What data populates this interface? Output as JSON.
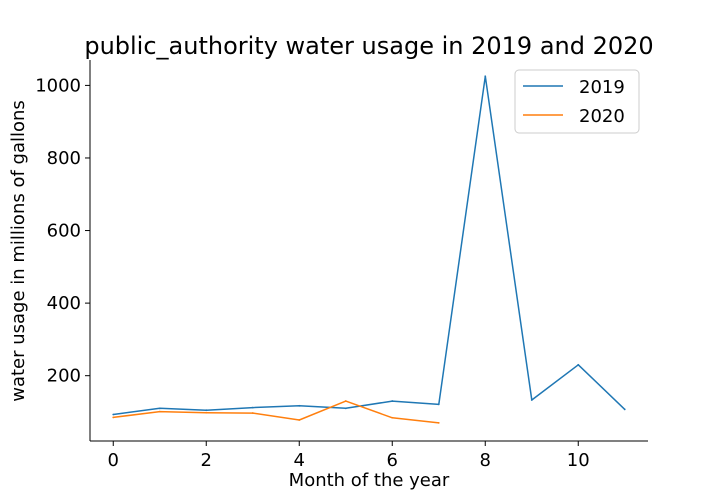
{
  "chart_data": {
    "type": "line",
    "title": "public_authority water usage in 2019 and 2020",
    "xlabel": "Month of the year",
    "ylabel": "water usage in millions of gallons",
    "xlim": [
      -0.5,
      11.5
    ],
    "ylim": [
      20,
      1070
    ],
    "xticks": [
      0,
      2,
      4,
      6,
      8,
      10
    ],
    "yticks": [
      200,
      400,
      600,
      800,
      1000
    ],
    "grid": false,
    "legend_position": "top-right",
    "series": [
      {
        "name": "2019",
        "color": "#1f77b4",
        "x": [
          0,
          1,
          2,
          3,
          4,
          5,
          6,
          7,
          8,
          9,
          10,
          11
        ],
        "values": [
          93,
          110,
          105,
          112,
          117,
          110,
          130,
          121,
          1025,
          133,
          230,
          107
        ]
      },
      {
        "name": "2020",
        "color": "#ff7f0e",
        "x": [
          0,
          1,
          2,
          3,
          4,
          5,
          6,
          7
        ],
        "values": [
          85,
          101,
          98,
          97,
          78,
          130,
          84,
          70
        ]
      }
    ]
  }
}
